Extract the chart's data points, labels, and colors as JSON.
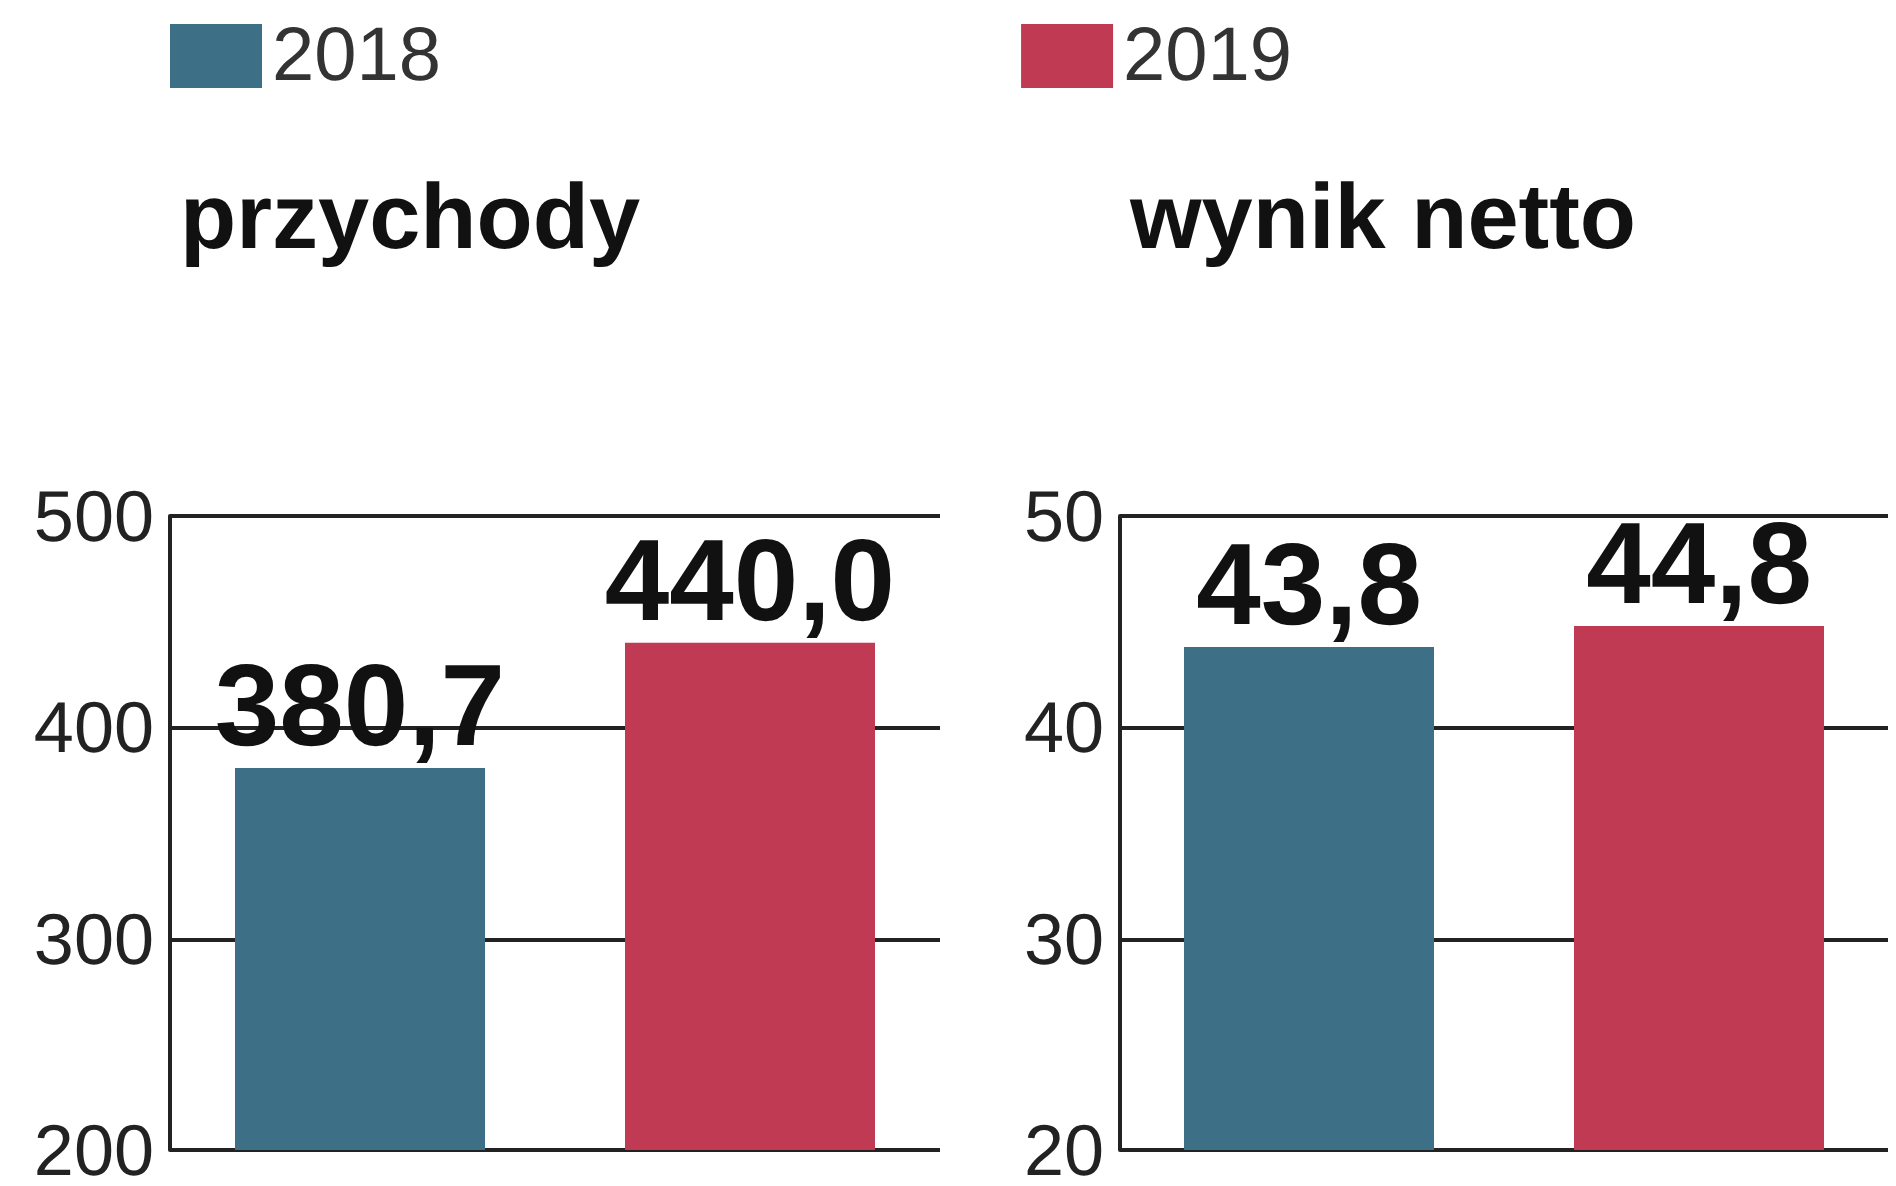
{
  "chart_data": [
    {
      "type": "bar",
      "title": "przychody",
      "categories": [
        null
      ],
      "legend": "top",
      "grid": "y",
      "ylim": [
        200,
        500
      ],
      "yticks": [
        200,
        300,
        400,
        500
      ],
      "series": [
        {
          "name": "2018",
          "color": "#3d6f87",
          "values": [
            380.7
          ],
          "value_labels": [
            "380,7"
          ]
        },
        {
          "name": "2019",
          "color": "#c13a54",
          "values": [
            440.0
          ],
          "value_labels": [
            "440,0"
          ]
        }
      ]
    },
    {
      "type": "bar",
      "title": "wynik netto",
      "categories": [
        null
      ],
      "legend": false,
      "grid": "y",
      "ylim": [
        20,
        50
      ],
      "yticks": [
        20,
        30,
        40,
        50
      ],
      "series": [
        {
          "name": "2018",
          "color": "#3d6f87",
          "values": [
            43.8
          ],
          "value_labels": [
            "43,8"
          ]
        },
        {
          "name": "2019",
          "color": "#c13a54",
          "values": [
            44.8
          ],
          "value_labels": [
            "44,8"
          ]
        }
      ]
    }
  ]
}
